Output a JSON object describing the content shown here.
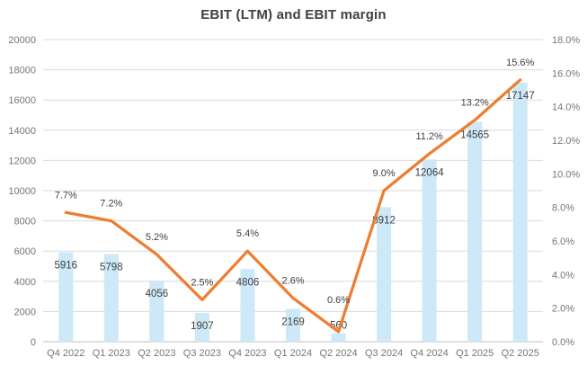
{
  "title": "EBIT (LTM) and EBIT margin",
  "colors": {
    "background": "#FFFFFF",
    "bar_fill": "#CDE8F6",
    "line_stroke": "#ED7D31",
    "gridline": "#D9D9D9",
    "axis_line": "#BFBFBF",
    "tick_text": "#757575",
    "data_label_text": "#404040",
    "title_text": "#404040"
  },
  "chart_data": {
    "type": "combo-bar-line",
    "title": "EBIT (LTM) and EBIT margin",
    "categories": [
      "Q4 2022",
      "Q1 2023",
      "Q2 2023",
      "Q3 2023",
      "Q4 2023",
      "Q1 2024",
      "Q2 2024",
      "Q3 2024",
      "Q4 2024",
      "Q1 2025",
      "Q2 2025"
    ],
    "series": [
      {
        "name": "EBIT (LTM)",
        "type": "bar",
        "axis": "left",
        "values": [
          5916,
          5798,
          4056,
          1907,
          4806,
          2169,
          560,
          8912,
          12064,
          14565,
          17147
        ],
        "labels": [
          "5916",
          "5798",
          "4056",
          "1907",
          "4806",
          "2169",
          "560",
          "8912",
          "12064",
          "14565",
          "17147"
        ]
      },
      {
        "name": "EBIT margin",
        "type": "line",
        "axis": "right",
        "values": [
          7.7,
          7.2,
          5.2,
          2.5,
          5.4,
          2.6,
          0.6,
          9.0,
          11.2,
          13.2,
          15.6
        ],
        "labels": [
          "7.7%",
          "7.2%",
          "5.2%",
          "2.5%",
          "5.4%",
          "2.6%",
          "0.6%",
          "9.0%",
          "11.2%",
          "13.2%",
          "15.6%"
        ]
      }
    ],
    "left_axis": {
      "min": 0,
      "max": 20000,
      "step": 2000,
      "ticks": [
        "0",
        "2000",
        "4000",
        "6000",
        "8000",
        "10000",
        "12000",
        "14000",
        "16000",
        "18000",
        "20000"
      ]
    },
    "right_axis": {
      "min": 0,
      "max": 18,
      "step": 2,
      "ticks": [
        "0.0%",
        "2.0%",
        "4.0%",
        "6.0%",
        "8.0%",
        "10.0%",
        "12.0%",
        "14.0%",
        "16.0%",
        "18.0%"
      ]
    },
    "grid": true,
    "legend": "none"
  }
}
